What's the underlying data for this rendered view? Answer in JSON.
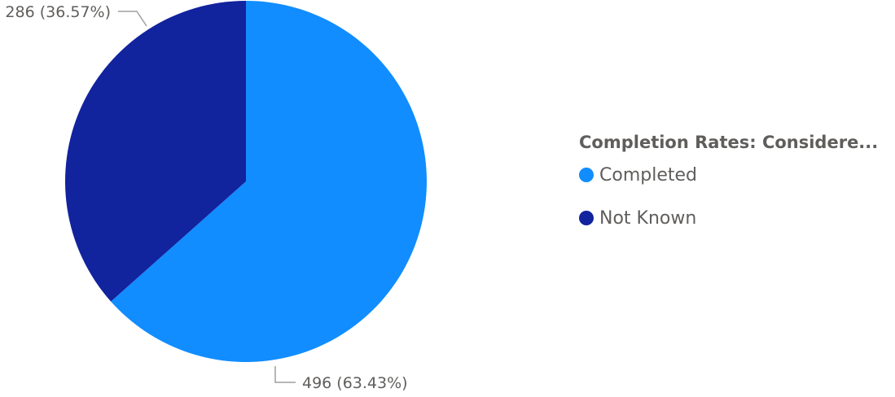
{
  "chart_data": {
    "type": "pie",
    "categories": [
      "Completed",
      "Not Known"
    ],
    "values": [
      496,
      286
    ],
    "percentages": [
      "63.43%",
      "36.57%"
    ],
    "data_labels": [
      "496 (63.43%)",
      "286 (36.57%)"
    ],
    "colors": [
      "#118dff",
      "#12239e"
    ],
    "legend_title": "Completion Rates: Considere...",
    "legend_position": "right",
    "start_angle": "12 o'clock, clockwise"
  }
}
